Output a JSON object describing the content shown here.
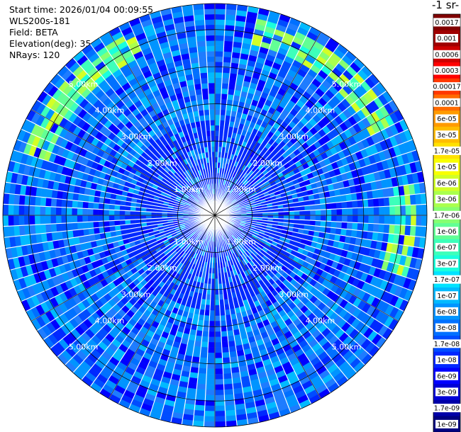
{
  "header": {
    "start_time": "Start time: 2026/01/04 00:09:55",
    "instrument": "WLS200s-181",
    "field": "Field: BETA",
    "elevation": "Elevation(deg): 35.00",
    "nrays": "NRays: 120"
  },
  "units_label": "-1 sr-",
  "chart_data": {
    "type": "heatmap",
    "projection": "polar (PPI)",
    "n_rays": 120,
    "range_rings_km": [
      1,
      2,
      3,
      4,
      5
    ],
    "ring_labels": [
      "1.00km",
      "2.00km",
      "3.00km",
      "4.00km",
      "5.00km"
    ],
    "max_range_km": 5.7,
    "colorbar": {
      "labels": [
        "0.0017",
        "0.001",
        "0.0006",
        "0.0003",
        "0.00017",
        "0.0001",
        "6e-05",
        "3e-05",
        "1.7e-05",
        "1e-05",
        "6e-06",
        "3e-06",
        "1.7e-06",
        "1e-06",
        "6e-07",
        "3e-07",
        "1.7e-07",
        "1e-07",
        "6e-08",
        "3e-08",
        "1.7e-08",
        "1e-08",
        "6e-09",
        "3e-09",
        "1.7e-09",
        "1e-09"
      ],
      "colors": [
        "#800000",
        "#a00000",
        "#cd0000",
        "#ff0000",
        "#ff3800",
        "#ff6a00",
        "#ff9b00",
        "#ffbd00",
        "#ffe100",
        "#f8ff00",
        "#d2ff26",
        "#aaff4d",
        "#86ff71",
        "#62ff95",
        "#3dffba",
        "#1affdd",
        "#00e3ff",
        "#00baff",
        "#0094ff",
        "#0070ff",
        "#004cff",
        "#0028ff",
        "#0000ff",
        "#0000d6",
        "#0000a8",
        "#000080"
      ]
    }
  }
}
